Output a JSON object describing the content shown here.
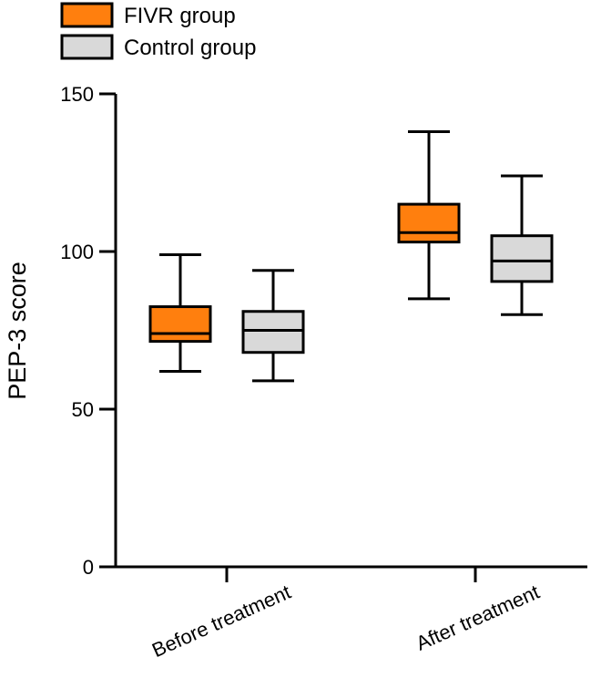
{
  "chart_data": {
    "type": "boxplot",
    "title": "",
    "xlabel": "",
    "ylabel": "PEP-3 score",
    "ylim": [
      0,
      150
    ],
    "yticks": [
      0,
      50,
      100,
      150
    ],
    "categories": [
      "Before treatment",
      "After treatment"
    ],
    "legend": {
      "placement": "top-left"
    },
    "series": [
      {
        "name": "FIVR group",
        "color": "#ff7f0e",
        "boxes": [
          {
            "min": 62,
            "q1": 71.5,
            "median": 74,
            "q3": 82.5,
            "max": 99
          },
          {
            "min": 85,
            "q1": 103,
            "median": 106,
            "q3": 115,
            "max": 138
          }
        ]
      },
      {
        "name": "Control group",
        "color": "#d9d9d9",
        "boxes": [
          {
            "min": 59,
            "q1": 68,
            "median": 75,
            "q3": 81,
            "max": 94
          },
          {
            "min": 80,
            "q1": 90.5,
            "median": 97,
            "q3": 105,
            "max": 124
          }
        ]
      }
    ]
  }
}
